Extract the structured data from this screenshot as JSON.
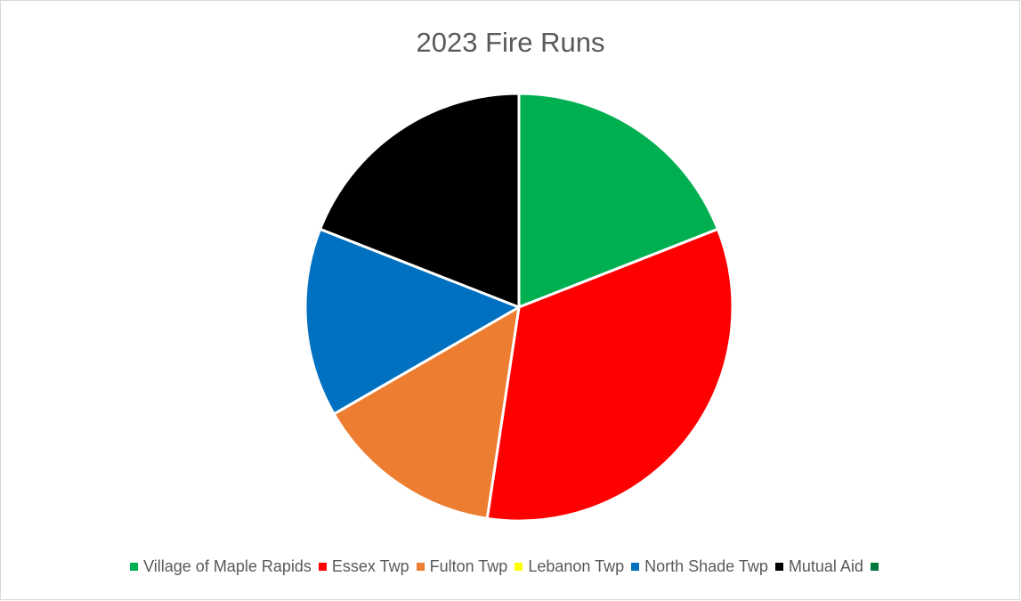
{
  "chart_data": {
    "type": "pie",
    "title": "2023 Fire Runs",
    "categories": [
      "Village of Maple Rapids",
      "Essex Twp",
      "Fulton Twp",
      "Lebanon Twp",
      "North Shade Twp",
      "Mutual Aid",
      ""
    ],
    "values": [
      20,
      35,
      15,
      0,
      15,
      20,
      0
    ],
    "colors": [
      "#00b050",
      "#ff0000",
      "#ed7d31",
      "#ffff00",
      "#0070c0",
      "#000000",
      "#00783c"
    ],
    "legend_position": "bottom",
    "start_angle_deg": 0,
    "direction": "clockwise"
  }
}
